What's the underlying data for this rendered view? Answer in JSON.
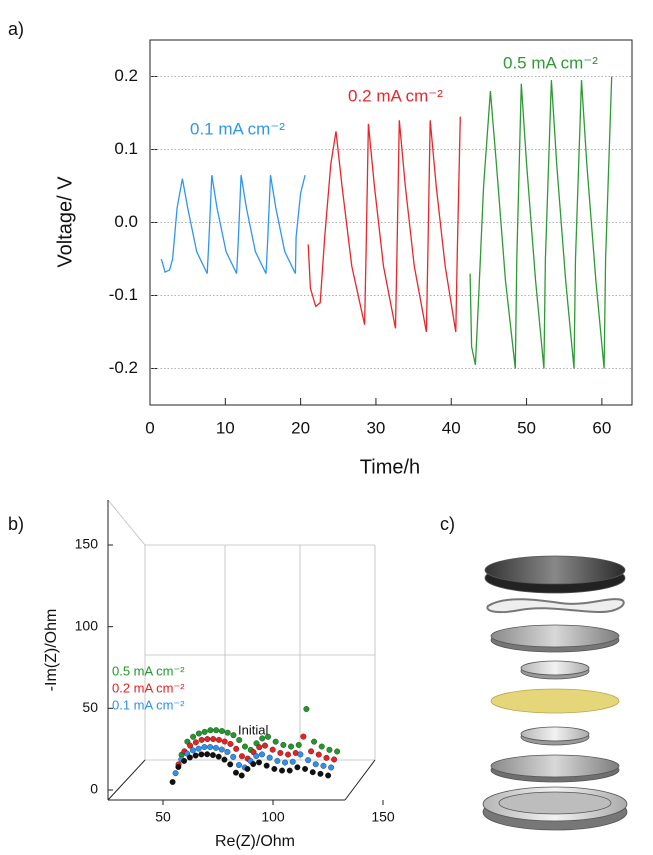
{
  "chart_data": [
    {
      "type": "line",
      "panel": "a)",
      "xlabel": "Time/h",
      "ylabel": "Voltage/ V",
      "xlim": [
        0,
        64
      ],
      "ylim": [
        -0.25,
        0.25
      ],
      "xticks": [
        0,
        10,
        20,
        30,
        40,
        50,
        60
      ],
      "yticks": [
        -0.2,
        -0.1,
        {
          "value": 0,
          "label": "0.0"
        },
        0.1,
        0.2
      ],
      "grid": true,
      "series": [
        {
          "name": "0.1 mA cm⁻²",
          "color": "#2f95f0",
          "x": [
            1.5,
            2.0,
            2.6,
            3.0,
            3.6,
            4.3,
            5.0,
            6.2,
            7.6,
            7.8,
            8.2,
            8.9,
            10.1,
            11.5,
            11.7,
            12.1,
            12.8,
            14.0,
            15.4,
            15.6,
            16.0,
            16.7,
            17.9,
            19.3,
            19.4,
            20.0,
            20.6
          ],
          "values": [
            -0.05,
            -0.068,
            -0.065,
            -0.05,
            0.02,
            0.06,
            0.02,
            -0.04,
            -0.07,
            -0.03,
            0.065,
            0.02,
            -0.04,
            -0.07,
            -0.03,
            0.065,
            0.02,
            -0.04,
            -0.07,
            -0.03,
            0.065,
            0.02,
            -0.04,
            -0.07,
            -0.02,
            0.04,
            0.065
          ]
        },
        {
          "name": "0.2 mA cm⁻²",
          "color": "#e8262b",
          "x": [
            21.0,
            21.3,
            22.0,
            22.6,
            23.2,
            24.0,
            24.7,
            25.5,
            26.8,
            28.5,
            28.7,
            29.0,
            29.8,
            31.0,
            32.6,
            32.8,
            33.1,
            33.9,
            35.1,
            36.7,
            36.9,
            37.2,
            38.0,
            39.2,
            40.6,
            40.8,
            41.2
          ],
          "values": [
            -0.03,
            -0.09,
            -0.115,
            -0.11,
            -0.02,
            0.08,
            0.125,
            0.05,
            -0.06,
            -0.14,
            -0.04,
            0.135,
            0.05,
            -0.06,
            -0.145,
            -0.04,
            0.14,
            0.05,
            -0.06,
            -0.15,
            -0.04,
            0.14,
            0.05,
            -0.06,
            -0.15,
            -0.04,
            0.145
          ]
        },
        {
          "name": "0.5 mA cm⁻²",
          "color": "#2e9a35",
          "x": [
            42.5,
            42.7,
            43.2,
            43.6,
            44.3,
            45.2,
            46.0,
            47.2,
            48.5,
            48.7,
            49.3,
            50.0,
            51.2,
            52.3,
            52.5,
            53.3,
            54.0,
            55.2,
            56.3,
            56.5,
            57.3,
            58.0,
            59.2,
            60.3,
            60.5,
            61.3
          ],
          "values": [
            -0.07,
            -0.17,
            -0.195,
            -0.11,
            0.05,
            0.18,
            0.08,
            -0.08,
            -0.2,
            -0.05,
            0.19,
            0.08,
            -0.08,
            -0.2,
            -0.05,
            0.195,
            0.08,
            -0.08,
            -0.2,
            -0.05,
            0.195,
            0.08,
            -0.08,
            -0.2,
            -0.05,
            0.2
          ]
        }
      ]
    },
    {
      "type": "scatter",
      "panel": "b)",
      "xlabel": "Re(Z)/Ohm",
      "ylabel": "-Im(Z)/Ohm",
      "xlim": [
        25,
        150
      ],
      "ylim": [
        0,
        150
      ],
      "xticks": [
        50,
        100,
        150
      ],
      "yticks": [
        0,
        50,
        100,
        150
      ],
      "series": [
        {
          "name": "0.5 mA cm⁻²",
          "color": "#1f9a2a",
          "x": [
            55,
            58,
            61,
            64,
            67,
            70,
            73,
            76,
            79,
            82,
            85,
            88,
            91,
            94,
            97,
            100,
            104,
            108,
            112,
            116,
            120,
            124,
            128,
            132,
            136
          ],
          "values": [
            2,
            10,
            13,
            15,
            16,
            17,
            17,
            16.5,
            15.5,
            14,
            11,
            7,
            5,
            9,
            12,
            13,
            10,
            8,
            7,
            8,
            30,
            10,
            7,
            5,
            4
          ]
        },
        {
          "name": "0.2 mA cm⁻²",
          "color": "#e82020",
          "x": [
            55,
            58,
            61,
            64,
            67,
            70,
            73,
            76,
            79,
            82,
            85,
            88,
            91,
            94,
            97,
            100,
            104,
            108,
            112,
            116,
            120,
            124,
            128,
            132,
            136
          ],
          "values": [
            1,
            9,
            12.5,
            14.5,
            16,
            16.5,
            16.5,
            16,
            15,
            13.5,
            10.5,
            6,
            4.5,
            8.5,
            11.5,
            12.5,
            10,
            8,
            7,
            8,
            18,
            9,
            7,
            5,
            4
          ]
        },
        {
          "name": "0.1 mA cm⁻²",
          "color": "#2e90f0",
          "x": [
            55,
            58,
            61,
            64,
            67,
            70,
            73,
            76,
            79,
            82,
            85,
            88,
            91,
            94,
            97,
            100,
            104,
            108,
            112,
            116,
            120,
            124,
            128,
            132,
            136
          ],
          "values": [
            0.5,
            9,
            12.5,
            14.5,
            15.5,
            16.5,
            16.5,
            16,
            15,
            13.5,
            10.5,
            5.5,
            4,
            8,
            11,
            12,
            10,
            8,
            7,
            7.5,
            12,
            8.5,
            6,
            5,
            4
          ]
        },
        {
          "name": "Initial",
          "color": "#111111",
          "x": [
            55,
            58,
            61,
            64,
            67,
            70,
            73,
            76,
            79,
            82,
            85,
            88,
            91,
            94,
            97,
            100,
            104,
            108,
            112,
            116,
            120,
            124,
            128,
            132,
            136
          ],
          "values": [
            0,
            9.2,
            12.9,
            15,
            16.2,
            16.9,
            17,
            16.5,
            15.5,
            13.7,
            10.8,
            5.7,
            4,
            8,
            11,
            12,
            10,
            8,
            7,
            7,
            9,
            8,
            6,
            5,
            4
          ]
        }
      ]
    }
  ],
  "figure_c": {
    "label": "c)"
  }
}
